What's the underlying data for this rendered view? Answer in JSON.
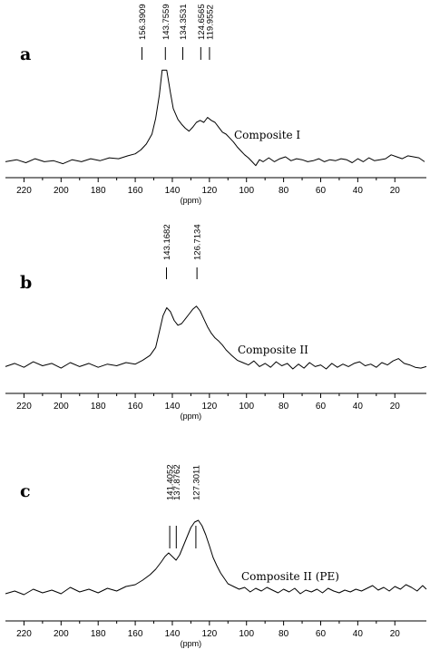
{
  "chart_data": [
    {
      "type": "line",
      "panel_label": "a",
      "series_label": "Composite I",
      "xlabel": "(ppm)",
      "x_reversed": true,
      "xlim": [
        230,
        3
      ],
      "ticks": [
        220,
        200,
        180,
        160,
        140,
        120,
        100,
        80,
        60,
        40,
        20
      ],
      "tick_labels": [
        "220",
        "200",
        "180",
        "160",
        "140",
        "120",
        "100",
        "80",
        "60",
        "40",
        "20"
      ],
      "peaks": [
        {
          "ppm": 156.3909,
          "label": "156.3909"
        },
        {
          "ppm": 143.7559,
          "label": "143.7559"
        },
        {
          "ppm": 134.3531,
          "label": "134.3531"
        },
        {
          "ppm": 124.6565,
          "label": "124.6565"
        },
        {
          "ppm": 119.9552,
          "label": "119.9552"
        }
      ],
      "x": [
        230,
        224,
        219,
        214,
        209,
        204,
        199,
        194,
        189,
        184,
        179,
        174,
        169,
        164,
        160,
        157,
        154,
        151,
        149,
        147,
        145.5,
        143,
        141,
        139.5,
        137,
        135,
        133,
        131,
        129,
        127,
        125,
        123,
        121,
        119,
        117,
        115,
        113,
        111,
        109,
        107,
        105,
        103,
        101,
        99,
        97,
        95,
        93,
        91,
        88,
        85,
        82,
        79,
        76,
        73,
        70,
        67,
        64,
        61,
        58,
        55,
        52,
        49,
        46,
        43,
        40,
        37,
        34,
        31,
        28,
        25,
        22,
        19,
        16,
        13,
        10,
        7,
        4
      ],
      "y": [
        0.02,
        0.04,
        0.01,
        0.05,
        0.02,
        0.03,
        0.0,
        0.04,
        0.02,
        0.05,
        0.03,
        0.06,
        0.05,
        0.08,
        0.1,
        0.14,
        0.2,
        0.3,
        0.46,
        0.7,
        0.95,
        0.95,
        0.72,
        0.56,
        0.45,
        0.4,
        0.36,
        0.33,
        0.37,
        0.42,
        0.44,
        0.42,
        0.47,
        0.44,
        0.42,
        0.37,
        0.32,
        0.3,
        0.26,
        0.22,
        0.17,
        0.13,
        0.09,
        0.06,
        0.02,
        -0.02,
        0.04,
        0.02,
        0.06,
        0.02,
        0.05,
        0.07,
        0.03,
        0.05,
        0.04,
        0.02,
        0.03,
        0.05,
        0.02,
        0.04,
        0.03,
        0.05,
        0.04,
        0.01,
        0.05,
        0.02,
        0.06,
        0.03,
        0.04,
        0.05,
        0.09,
        0.07,
        0.05,
        0.08,
        0.07,
        0.06,
        0.02
      ],
      "ylim": [
        -0.05,
        1.0
      ]
    },
    {
      "type": "line",
      "panel_label": "b",
      "series_label": "Composite II",
      "xlabel": "(ppm)",
      "x_reversed": true,
      "xlim": [
        230,
        3
      ],
      "ticks": [
        220,
        200,
        180,
        160,
        140,
        120,
        100,
        80,
        60,
        40,
        20
      ],
      "tick_labels": [
        "220",
        "200",
        "180",
        "160",
        "140",
        "120",
        "100",
        "80",
        "60",
        "40",
        "20"
      ],
      "peaks": [
        {
          "ppm": 143.1682,
          "label": "143.1682"
        },
        {
          "ppm": 126.7134,
          "label": "126.7134"
        }
      ],
      "x": [
        230,
        225,
        220,
        215,
        210,
        205,
        200,
        195,
        190,
        185,
        180,
        175,
        170,
        165,
        160,
        156,
        152,
        149,
        147,
        145,
        143,
        141,
        139,
        137,
        135,
        133,
        131,
        129,
        127,
        125,
        123,
        121,
        119,
        117,
        115,
        113,
        111,
        108,
        105,
        102,
        99,
        96,
        93,
        90,
        87,
        84,
        81,
        78,
        75,
        72,
        69,
        66,
        63,
        60,
        57,
        54,
        51,
        48,
        45,
        42,
        39,
        36,
        33,
        30,
        27,
        24,
        21,
        18,
        15,
        12,
        9,
        6,
        3
      ],
      "y": [
        0.06,
        0.1,
        0.05,
        0.12,
        0.07,
        0.1,
        0.04,
        0.11,
        0.06,
        0.1,
        0.05,
        0.09,
        0.07,
        0.11,
        0.09,
        0.14,
        0.2,
        0.3,
        0.5,
        0.7,
        0.8,
        0.75,
        0.64,
        0.58,
        0.6,
        0.66,
        0.72,
        0.78,
        0.82,
        0.76,
        0.66,
        0.56,
        0.48,
        0.42,
        0.38,
        0.33,
        0.27,
        0.2,
        0.14,
        0.11,
        0.08,
        0.13,
        0.06,
        0.1,
        0.05,
        0.12,
        0.07,
        0.1,
        0.03,
        0.09,
        0.04,
        0.11,
        0.06,
        0.08,
        0.03,
        0.1,
        0.05,
        0.09,
        0.06,
        0.1,
        0.12,
        0.07,
        0.09,
        0.05,
        0.11,
        0.08,
        0.13,
        0.16,
        0.1,
        0.08,
        0.05,
        0.04,
        0.06
      ],
      "ylim": [
        -0.05,
        1.0
      ]
    },
    {
      "type": "line",
      "panel_label": "c",
      "series_label": "Composite II (PE)",
      "xlabel": "(ppm)",
      "x_reversed": true,
      "xlim": [
        230,
        3
      ],
      "ticks": [
        220,
        200,
        180,
        160,
        140,
        120,
        100,
        80,
        60,
        40,
        20
      ],
      "tick_labels": [
        "220",
        "200",
        "180",
        "160",
        "140",
        "120",
        "100",
        "80",
        "60",
        "40",
        "20"
      ],
      "peaks": [
        {
          "ppm": 141.4052,
          "label": "141.4052"
        },
        {
          "ppm": 137.8762,
          "label": "137.8762"
        },
        {
          "ppm": 127.3011,
          "label": "127.3011"
        }
      ],
      "x": [
        230,
        225,
        220,
        215,
        210,
        205,
        200,
        195,
        190,
        185,
        180,
        175,
        170,
        165,
        160,
        156,
        152,
        149,
        146,
        144,
        142,
        140,
        138,
        136,
        134,
        132,
        130,
        128,
        126,
        124,
        122,
        120,
        118,
        116,
        114,
        112,
        110,
        107,
        104,
        101,
        98,
        95,
        92,
        89,
        86,
        83,
        80,
        77,
        74,
        71,
        68,
        65,
        62,
        59,
        56,
        53,
        50,
        47,
        44,
        41,
        38,
        35,
        32,
        29,
        26,
        23,
        20,
        17,
        14,
        11,
        8,
        5,
        3
      ],
      "y": [
        0.05,
        0.08,
        0.04,
        0.1,
        0.06,
        0.09,
        0.05,
        0.12,
        0.07,
        0.1,
        0.06,
        0.11,
        0.08,
        0.13,
        0.15,
        0.2,
        0.26,
        0.32,
        0.4,
        0.46,
        0.5,
        0.46,
        0.42,
        0.48,
        0.58,
        0.68,
        0.78,
        0.84,
        0.86,
        0.8,
        0.7,
        0.58,
        0.45,
        0.36,
        0.28,
        0.22,
        0.16,
        0.13,
        0.1,
        0.12,
        0.07,
        0.11,
        0.08,
        0.12,
        0.09,
        0.06,
        0.1,
        0.07,
        0.11,
        0.05,
        0.09,
        0.07,
        0.1,
        0.06,
        0.11,
        0.08,
        0.06,
        0.09,
        0.07,
        0.1,
        0.08,
        0.11,
        0.14,
        0.09,
        0.12,
        0.08,
        0.13,
        0.1,
        0.15,
        0.12,
        0.08,
        0.14,
        0.1
      ],
      "ylim": [
        -0.05,
        1.0
      ]
    }
  ]
}
